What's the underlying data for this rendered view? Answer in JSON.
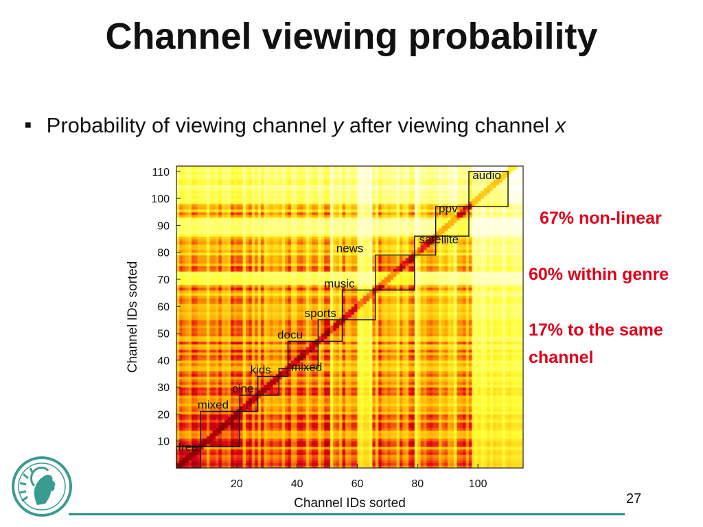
{
  "slide": {
    "title": "Channel viewing probability",
    "bullet": {
      "prefix": "Probability of viewing channel ",
      "var_y": "y",
      "middle": " after viewing channel ",
      "var_x": "x"
    },
    "callouts": [
      "67% non-linear",
      "60% within genre",
      "17% to the same",
      "channel"
    ],
    "page_number": "27"
  },
  "colors": {
    "accent": "#e0001b",
    "footer_rule": "#2a8f85",
    "logo": "#3a9b90"
  },
  "icons": {
    "logo": "minerva-seal-icon"
  },
  "chart_data": {
    "type": "heatmap",
    "xlabel": "Channel IDs sorted",
    "ylabel": "Channel IDs sorted",
    "xlim": [
      0,
      115
    ],
    "ylim": [
      0,
      112
    ],
    "x_ticks": [
      20,
      40,
      60,
      80,
      100
    ],
    "y_ticks": [
      10,
      20,
      30,
      40,
      50,
      60,
      70,
      80,
      90,
      100,
      110
    ],
    "grid": false,
    "legend": "none",
    "colormap": [
      "#ffffff",
      "#ffff33",
      "#ffaa00",
      "#e8001a",
      "#8a0000"
    ],
    "genres": [
      {
        "name": "free",
        "start": 0,
        "end": 8
      },
      {
        "name": "mixed",
        "start": 8,
        "end": 21
      },
      {
        "name": "cine",
        "start": 21,
        "end": 27
      },
      {
        "name": "kids",
        "start": 27,
        "end": 34
      },
      {
        "name": "mixed",
        "start": 34,
        "end": 37
      },
      {
        "name": "docu",
        "start": 37,
        "end": 47
      },
      {
        "name": "sports",
        "start": 47,
        "end": 55
      },
      {
        "name": "music",
        "start": 55,
        "end": 66
      },
      {
        "name": "news",
        "start": 66,
        "end": 79
      },
      {
        "name": "satellite",
        "start": 79,
        "end": 86
      },
      {
        "name": "ppv",
        "start": 86,
        "end": 97
      },
      {
        "name": "audio",
        "start": 97,
        "end": 110
      }
    ]
  }
}
